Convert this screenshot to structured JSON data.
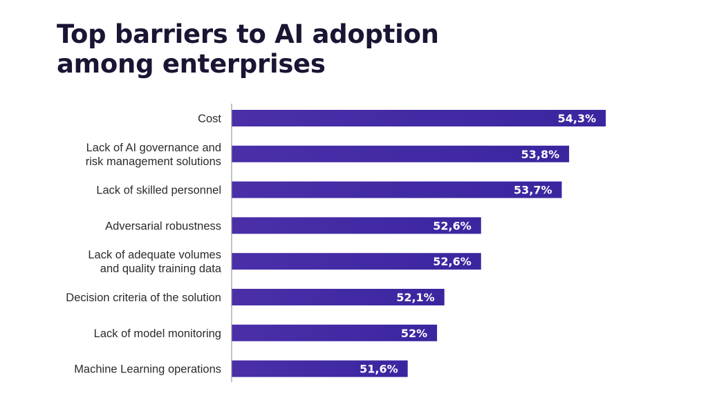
{
  "chart_data": {
    "type": "bar",
    "orientation": "horizontal",
    "title_lines": [
      "Top barriers to AI adoption",
      "among enterprises"
    ],
    "categories": [
      [
        "Cost"
      ],
      [
        "Lack of AI governance and",
        "risk management solutions"
      ],
      [
        "Lack of skilled personnel"
      ],
      [
        "Adversarial robustness"
      ],
      [
        "Lack of adequate volumes",
        "and quality training data"
      ],
      [
        "Decision criteria of the solution"
      ],
      [
        "Lack of model monitoring"
      ],
      [
        "Machine Learning operations"
      ]
    ],
    "values": [
      54.3,
      53.8,
      53.7,
      52.6,
      52.6,
      52.1,
      52,
      51.6
    ],
    "value_labels": [
      "54,3%",
      "53,8%",
      "53,7%",
      "52,6%",
      "52,6%",
      "52,1%",
      "52%",
      "51,6%"
    ],
    "xlim": [
      49.2,
      54.6
    ],
    "grid": false,
    "legend": "none",
    "colors": {
      "bar_start": "#4a2fa8",
      "bar_end": "#3b26a0",
      "title": "#1c1433",
      "label": "#2b2b2b",
      "axis": "#9a9a9a",
      "value_text": "#ffffff"
    }
  }
}
